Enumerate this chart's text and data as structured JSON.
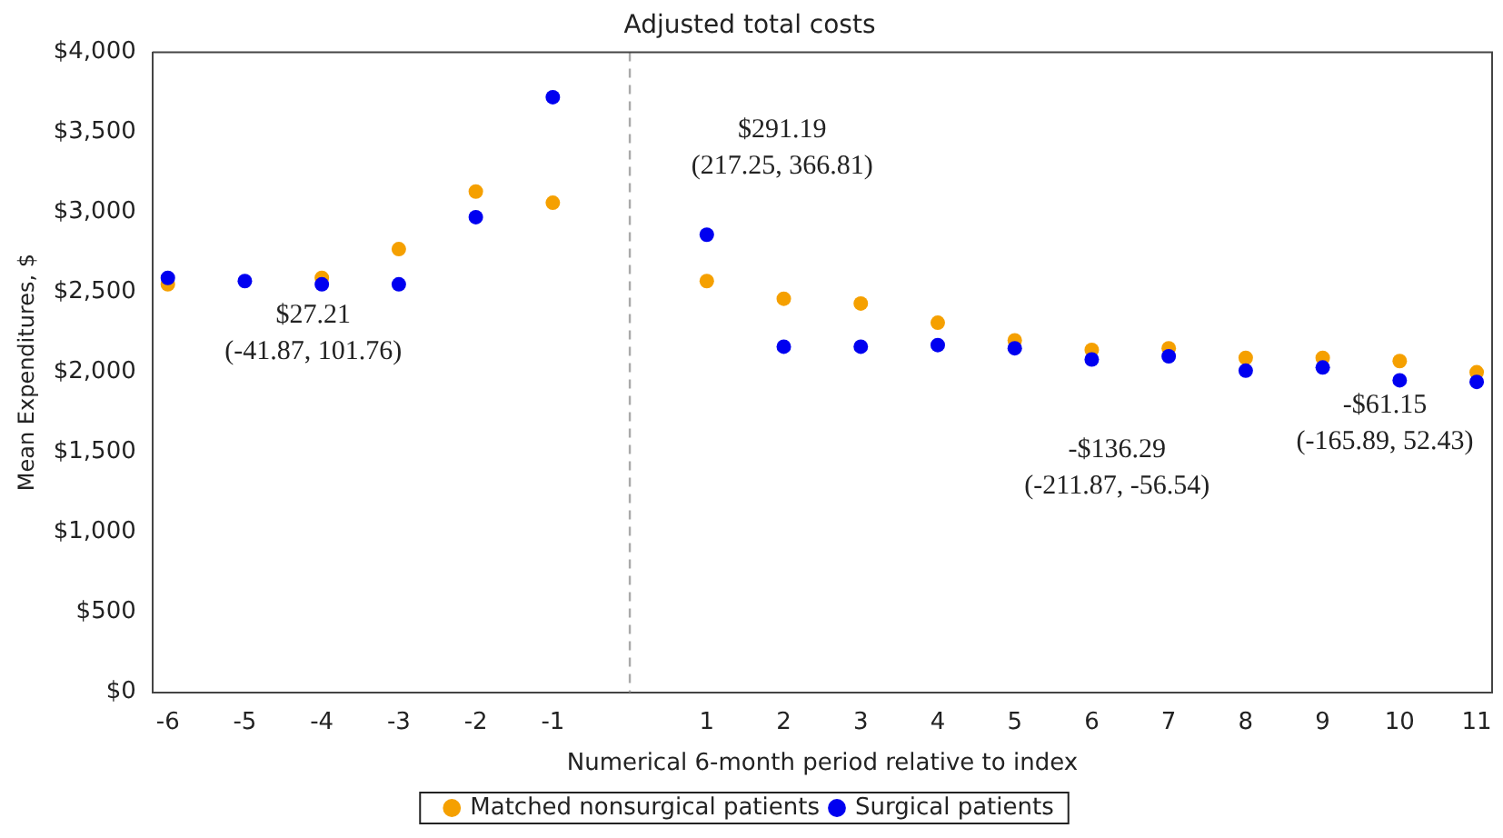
{
  "chart_data": {
    "type": "scatter",
    "title": "Adjusted total costs",
    "xlabel": "Numerical 6-month period relative to index",
    "ylabel": "Mean Expenditures, $",
    "x": [
      -6,
      -5,
      -4,
      -3,
      -2,
      -1,
      1,
      2,
      3,
      4,
      5,
      6,
      7,
      8,
      9,
      10,
      11
    ],
    "series": [
      {
        "name": "Matched nonsurgical patients",
        "color": "#f5a000",
        "values": [
          2550,
          null,
          2590,
          2770,
          3130,
          3060,
          2570,
          2460,
          2430,
          2310,
          2200,
          2140,
          2150,
          2090,
          2090,
          2070,
          2000
        ]
      },
      {
        "name": "Surgical patients",
        "color": "#0000f0",
        "values": [
          2590,
          2570,
          2550,
          2550,
          2970,
          3720,
          2860,
          2160,
          2160,
          2170,
          2150,
          2080,
          2100,
          2010,
          2030,
          1950,
          1940
        ]
      }
    ],
    "xlim": [
      -6.2,
      11.2
    ],
    "xticks": [
      -6,
      -5,
      -4,
      -3,
      -2,
      -1,
      1,
      2,
      3,
      4,
      5,
      6,
      7,
      8,
      9,
      10,
      11
    ],
    "ylim": [
      0,
      4000
    ],
    "yticks": [
      {
        "value": 0,
        "label": "$0"
      },
      {
        "value": 500,
        "label": "$500"
      },
      {
        "value": 1000,
        "label": "$1,000"
      },
      {
        "value": 1500,
        "label": "$1,500"
      },
      {
        "value": 2000,
        "label": "$2,000"
      },
      {
        "value": 2500,
        "label": "$2,500"
      },
      {
        "value": 3000,
        "label": "$3,000"
      },
      {
        "value": 3500,
        "label": "$3,500"
      },
      {
        "value": 4000,
        "label": "$4,000"
      }
    ],
    "ref_lines": [
      {
        "axis": "x",
        "value": 0,
        "color": "#aaaaaa",
        "line_style": "dashed"
      }
    ],
    "annotations": [
      "$27.21\n(-41.87, 101.76)",
      "$291.19\n(217.25, 366.81)",
      "-$136.29\n(-211.87, -56.54)",
      "-$61.15\n(-165.89, 52.43)"
    ],
    "grid": false,
    "legend": "bottom",
    "marker": "circle"
  }
}
